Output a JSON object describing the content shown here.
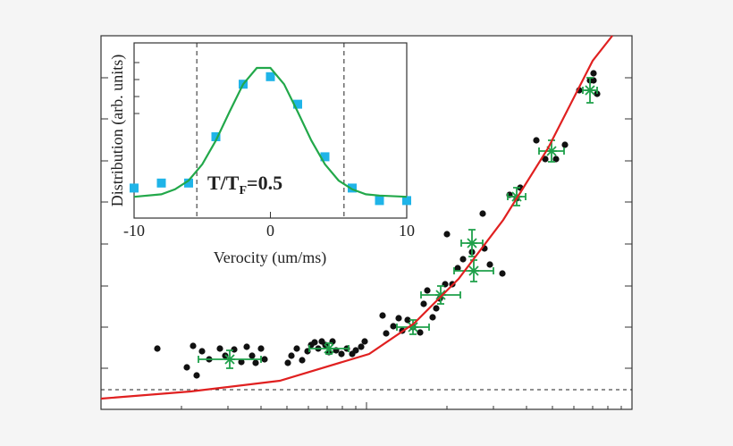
{
  "chart_data": [
    {
      "type": "scatter",
      "xlim": [
        0,
        594
      ],
      "ylim": [
        0,
        418
      ],
      "hline": 22,
      "series": [
        {
          "type": "dots",
          "color": "#111111",
          "x": [
            63,
            96,
            107,
            103,
            113,
            121,
            133,
            139,
            149,
            157,
            163,
            169,
            173,
            179,
            183,
            209,
            213,
            219,
            225,
            231,
            235,
            239,
            243,
            247,
            251,
            255,
            259,
            263,
            269,
            275,
            281,
            285,
            291,
            295,
            315,
            319,
            327,
            333,
            337,
            343,
            349,
            357,
            361,
            365,
            371,
            375,
            379,
            385,
            393,
            399,
            405,
            387,
            427,
            415,
            429,
            435,
            449,
            457,
            465,
            469,
            487,
            497,
            509,
            519,
            535,
            547,
            551,
            555,
            551
          ],
          "values": [
            68,
            47,
            38,
            71,
            65,
            56,
            68,
            60,
            67,
            53,
            70,
            60,
            52,
            68,
            56,
            52,
            60,
            68,
            55,
            65,
            72,
            75,
            68,
            76,
            72,
            64,
            76,
            66,
            62,
            68,
            62,
            66,
            70,
            76,
            105,
            85,
            93,
            102,
            88,
            100,
            92,
            86,
            118,
            133,
            103,
            113,
            124,
            140,
            140,
            158,
            168,
            196,
            219,
            176,
            180,
            162,
            152,
            240,
            236,
            248,
            301,
            280,
            280,
            296,
            357,
            368,
            376,
            353,
            368
          ]
        },
        {
          "type": "crosses",
          "color": "#1fa04a",
          "x": [
            144,
            255,
            349,
            380,
            415,
            417,
            465,
            504,
            547
          ],
          "values": [
            56,
            68,
            92,
            128,
            186,
            155,
            238,
            289,
            357
          ],
          "xerr": [
            35,
            22,
            18,
            22,
            12,
            22,
            10,
            14,
            8
          ],
          "yerr": [
            10,
            6,
            8,
            10,
            15,
            12,
            10,
            12,
            14
          ]
        },
        {
          "type": "line",
          "color": "#e02020",
          "x": [
            0,
            100,
            200,
            300,
            350,
            400,
            450,
            500,
            550,
            572
          ],
          "values": [
            12,
            20,
            32,
            62,
            96,
            146,
            212,
            292,
            390,
            418
          ]
        }
      ]
    },
    {
      "type": "scatter",
      "xlabel": "Verocity (um/ms)",
      "ylabel": "Distribution (arb. units)",
      "annotation": [
        "T/T",
        "F",
        "=0.5"
      ],
      "xlim": [
        -10,
        10
      ],
      "ylim": [
        0,
        1.4
      ],
      "xticks": [
        -10,
        0,
        10
      ],
      "vlines": [
        -5.4,
        5.4
      ],
      "series": [
        {
          "type": "squares",
          "color": "#1fb4e8",
          "x": [
            -10,
            -8,
            -6,
            -4,
            -2,
            0,
            2,
            4,
            6,
            8,
            10
          ],
          "values": [
            0.24,
            0.28,
            0.28,
            0.65,
            1.07,
            1.13,
            0.91,
            0.49,
            0.24,
            0.14,
            0.14
          ]
        },
        {
          "type": "line",
          "color": "#22a84a",
          "x": [
            -10,
            -8,
            -7,
            -6,
            -5,
            -4,
            -3,
            -2,
            -1,
            0,
            1,
            2,
            3,
            4,
            5,
            6,
            7,
            8,
            10
          ],
          "values": [
            0.17,
            0.19,
            0.23,
            0.3,
            0.43,
            0.62,
            0.85,
            1.07,
            1.2,
            1.2,
            1.07,
            0.85,
            0.62,
            0.43,
            0.3,
            0.23,
            0.19,
            0.18,
            0.17
          ]
        }
      ]
    }
  ]
}
